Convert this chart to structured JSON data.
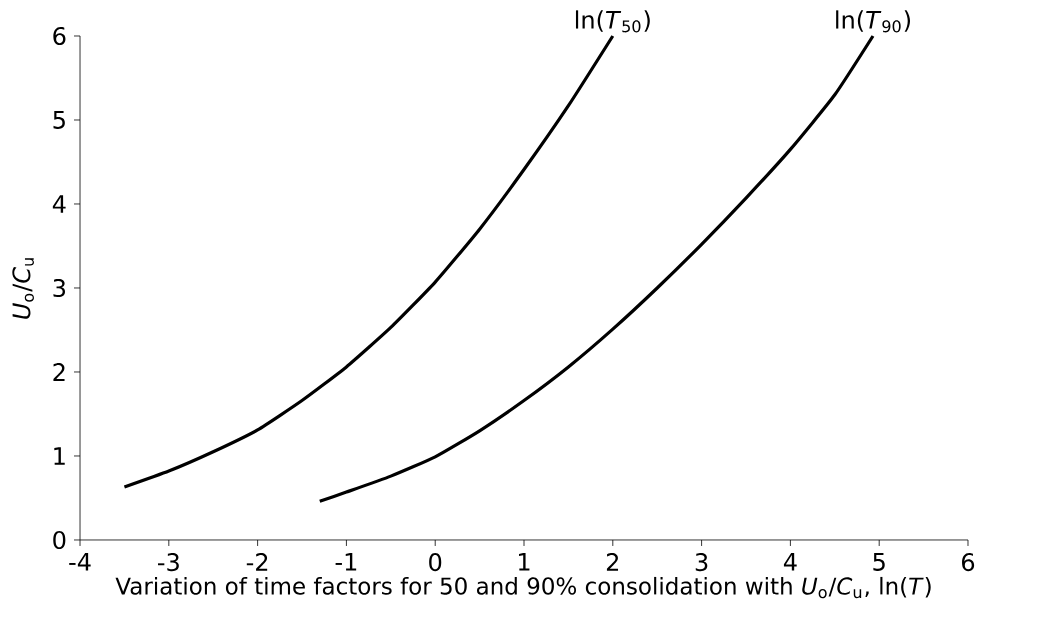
{
  "chart_data": {
    "type": "line",
    "xlabel": "Variation of time factors for 50 and 90% consolidation with *U*$_{o}$/*C*$_{u}$, ln(*T*)",
    "ylabel": "*U*$_{o}$/*C*$_{u}$",
    "xlim": [
      -4,
      6
    ],
    "ylim": [
      0,
      6
    ],
    "xticks": [
      -4,
      -3,
      -2,
      -1,
      0,
      1,
      2,
      3,
      4,
      5,
      6
    ],
    "yticks": [
      0,
      1,
      2,
      3,
      4,
      5,
      6
    ],
    "grid": false,
    "marker": "none",
    "line_style": "solid",
    "series": [
      {
        "name": "ln(*T*$_{50}$)",
        "color": "#000000",
        "x": [
          -3.5,
          -3,
          -2.5,
          -2,
          -1.5,
          -1,
          -0.5,
          0,
          0.5,
          1,
          1.5,
          2
        ],
        "values": [
          0.63,
          0.82,
          1.05,
          1.31,
          1.66,
          2.06,
          2.53,
          3.07,
          3.7,
          4.41,
          5.17,
          6
        ]
      },
      {
        "name": "ln(*T*$_{90}$)",
        "color": "#000000",
        "x": [
          -1.3,
          -1,
          -0.5,
          0,
          0.5,
          1,
          1.5,
          2,
          2.5,
          3,
          3.5,
          4,
          4.5,
          4.93
        ],
        "values": [
          0.46,
          0.57,
          0.76,
          0.99,
          1.3,
          1.66,
          2.06,
          2.51,
          3.0,
          3.52,
          4.07,
          4.65,
          5.3,
          6
        ]
      }
    ]
  }
}
